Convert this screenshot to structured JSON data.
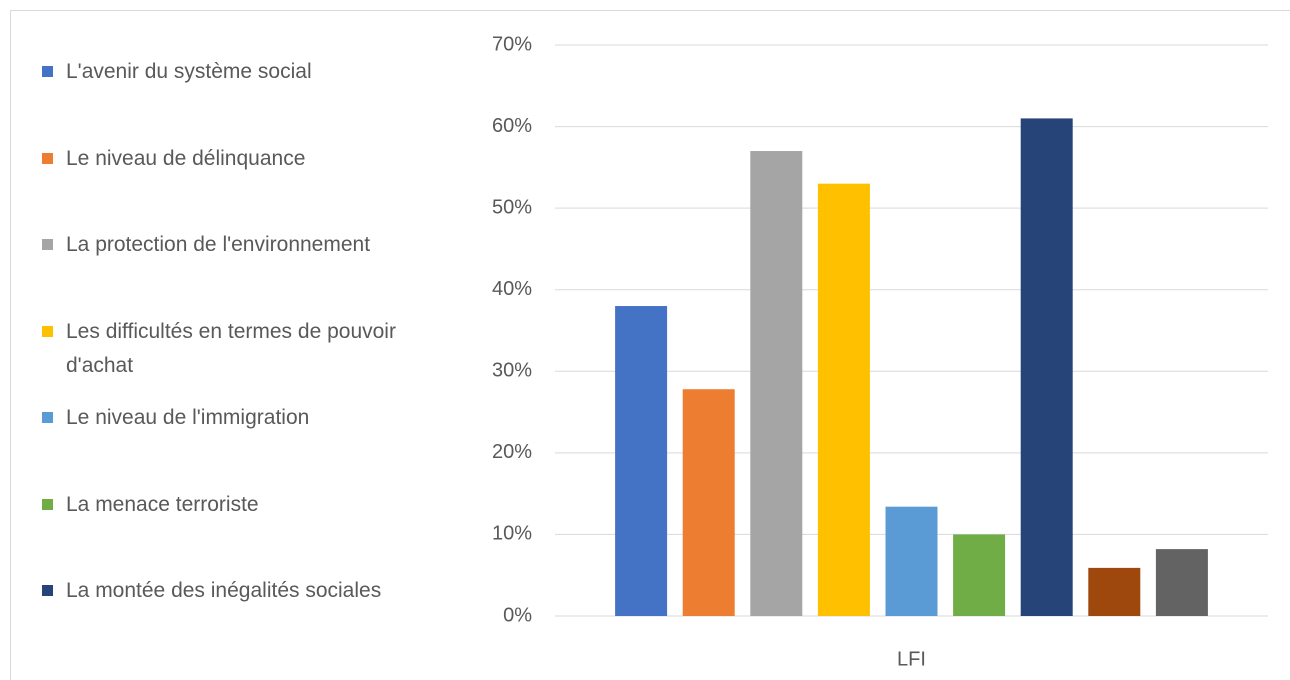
{
  "chart_data": {
    "type": "bar",
    "categories": [
      "LFI"
    ],
    "series": [
      {
        "name": "L'avenir du système social",
        "color": "#4472c4",
        "values": [
          38
        ]
      },
      {
        "name": "Le niveau de délinquance",
        "color": "#ed7d31",
        "values": [
          27.8
        ]
      },
      {
        "name": "La protection de l'environnement",
        "color": "#a5a5a5",
        "values": [
          57
        ]
      },
      {
        "name": "Les difficultés en termes de pouvoir d'achat",
        "color": "#ffc000",
        "values": [
          53
        ]
      },
      {
        "name": "Le niveau de l'immigration",
        "color": "#5b9bd5",
        "values": [
          13.4
        ]
      },
      {
        "name": "La menace terroriste",
        "color": "#70ad47",
        "values": [
          10
        ]
      },
      {
        "name": "La montée des inégalités sociales",
        "color": "#264478",
        "values": [
          61
        ]
      },
      {
        "color": "#9e480e",
        "values": [
          5.9
        ]
      },
      {
        "color": "#636363",
        "values": [
          8.2
        ]
      }
    ],
    "ylim": [
      0,
      70
    ],
    "yticks": [
      {
        "value": 0,
        "label": "0%"
      },
      {
        "value": 10,
        "label": "10%"
      },
      {
        "value": 20,
        "label": "20%"
      },
      {
        "value": 30,
        "label": "30%"
      },
      {
        "value": 40,
        "label": "40%"
      },
      {
        "value": 50,
        "label": "50%"
      },
      {
        "value": 60,
        "label": "60%"
      },
      {
        "value": 70,
        "label": "70%"
      }
    ],
    "grid": true,
    "legend": "left"
  }
}
